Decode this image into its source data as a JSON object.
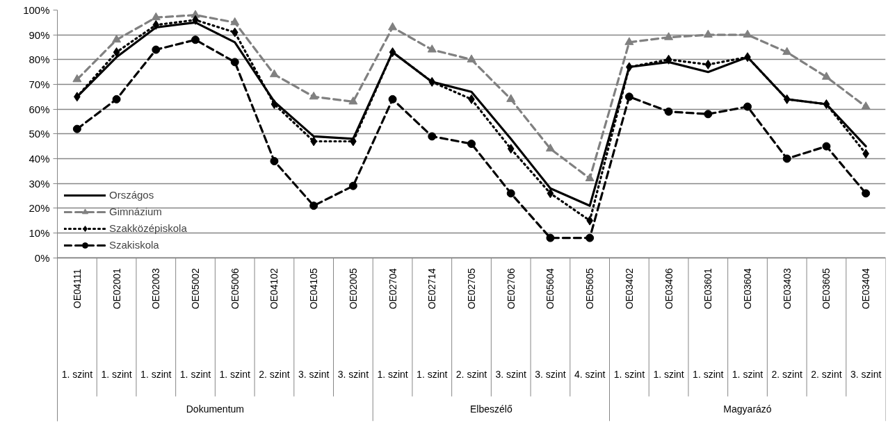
{
  "chart_data": {
    "type": "line",
    "categories": [
      "OE04111",
      "OE02001",
      "OE02003",
      "OE05002",
      "OE05006",
      "OE04102",
      "OE04105",
      "OE02005",
      "OE02704",
      "OE02714",
      "OE02705",
      "OE02706",
      "OE05604",
      "OE05605",
      "OE03402",
      "OE03406",
      "OE03601",
      "OE03604",
      "OE03403",
      "OE03605",
      "OE03404"
    ],
    "annotations": [
      {
        "text": "Dokumentum"
      },
      "1. szint",
      "1. szint",
      "1. szint",
      "1. szint",
      "1. szint",
      "2. szint",
      "3. szint",
      "3. szint",
      {
        "text": "Elbeszélő"
      },
      "1. szint",
      "1. szint",
      "2. szint",
      "3. szint",
      "3. szint",
      "4. szint",
      {
        "text": "Magyarázó"
      },
      "1. szint",
      "1. szint",
      "1. szint",
      "1. szint",
      "2. szint",
      "2. szint",
      "3. szint"
    ],
    "series": [
      {
        "name": "Országos",
        "color": "#000000",
        "marker": "none",
        "line_style": "solid",
        "values": [
          65,
          81,
          93,
          95,
          87,
          63,
          49,
          48,
          83,
          71,
          67,
          48,
          28,
          21,
          77,
          79,
          75,
          81,
          64,
          62,
          45
        ]
      },
      {
        "name": "Gimnázium",
        "color": "#808080",
        "marker": "triangle",
        "line_style": "dashed",
        "values": [
          72,
          88,
          97,
          98,
          95,
          74,
          65,
          63,
          93,
          84,
          80,
          64,
          44,
          32,
          87,
          89,
          90,
          90,
          83,
          73,
          61
        ]
      },
      {
        "name": "Szakközépiskola",
        "color": "#000000",
        "marker": "diamond",
        "line_style": "dotted",
        "values": [
          65,
          83,
          94,
          96,
          91,
          62,
          47,
          47,
          83,
          71,
          64,
          44,
          26,
          15,
          77,
          80,
          78,
          81,
          64,
          62,
          42
        ]
      },
      {
        "name": "Szakiskola",
        "color": "#000000",
        "marker": "circle",
        "line_style": "dashed",
        "values": [
          52,
          64,
          84,
          88,
          79,
          39,
          21,
          29,
          64,
          49,
          46,
          26,
          8,
          8,
          65,
          59,
          58,
          61,
          40,
          45,
          26
        ]
      }
    ],
    "ylim": [
      0,
      100
    ],
    "yticks": [
      {
        "value": 0,
        "label": "0%"
      },
      {
        "value": 10,
        "label": "10%"
      },
      {
        "value": 20,
        "label": "20%"
      },
      {
        "value": 30,
        "label": "30%"
      },
      {
        "value": 40,
        "label": "40%"
      },
      {
        "value": 50,
        "label": "50%"
      },
      {
        "value": 60,
        "label": "60%"
      },
      {
        "value": 70,
        "label": "70%"
      },
      {
        "value": 80,
        "label": "80%"
      },
      {
        "value": 90,
        "label": "90%"
      },
      {
        "value": 100,
        "label": "100%"
      }
    ],
    "grid": "y",
    "legend": "bottom left"
  }
}
